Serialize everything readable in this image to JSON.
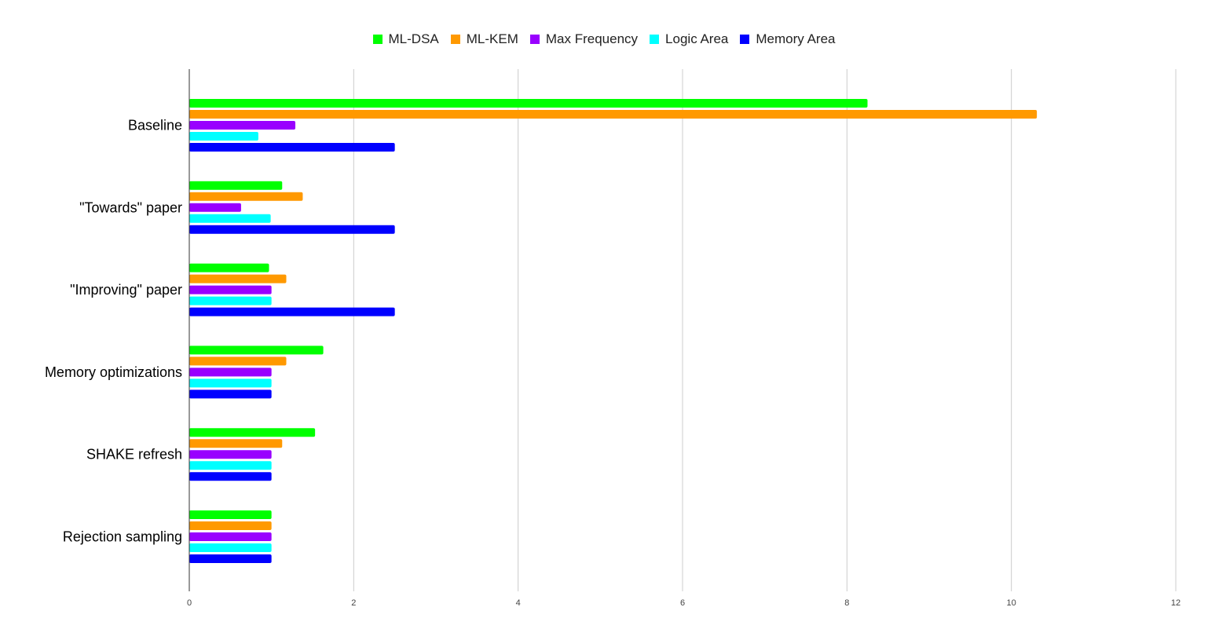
{
  "chart_data": {
    "type": "bar",
    "orientation": "horizontal",
    "title": "",
    "xlabel": "",
    "ylabel": "",
    "categories": [
      "Baseline",
      "\"Towards\" paper",
      "\"Improving\" paper",
      "Memory optimizations",
      "SHAKE refresh",
      "Rejection sampling"
    ],
    "series": [
      {
        "name": "ML-DSA",
        "color": "#00ff00",
        "values": [
          8.25,
          1.13,
          0.97,
          1.63,
          1.53,
          1.0
        ]
      },
      {
        "name": "ML-KEM",
        "color": "#ff9900",
        "values": [
          10.31,
          1.38,
          1.18,
          1.18,
          1.13,
          1.0
        ]
      },
      {
        "name": "Max Frequency",
        "color": "#9900ff",
        "values": [
          1.29,
          0.63,
          1.0,
          1.0,
          1.0,
          1.0
        ]
      },
      {
        "name": "Logic Area",
        "color": "#00ffff",
        "values": [
          0.84,
          0.99,
          1.0,
          1.0,
          1.0,
          1.0
        ]
      },
      {
        "name": "Memory Area",
        "color": "#0000ff",
        "values": [
          2.5,
          2.5,
          2.5,
          1.0,
          1.0,
          1.0
        ]
      }
    ],
    "xlim": [
      0,
      12
    ],
    "xticks": [
      "0",
      "2",
      "4",
      "6",
      "8",
      "10",
      "12"
    ],
    "grid": true,
    "legend_position": "top"
  }
}
